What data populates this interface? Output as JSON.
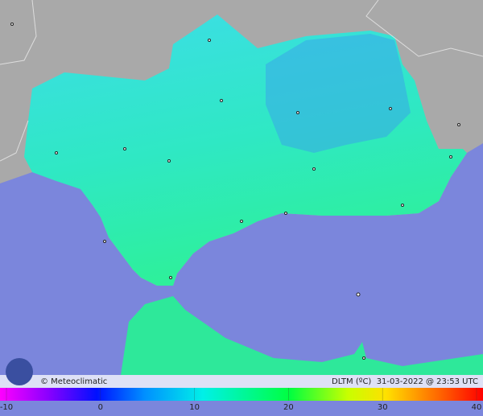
{
  "credit": "© Meteoclimatic",
  "caption": "DLTM (ºC)  31-03-2022 @ 23:53 UTC",
  "color_scale": {
    "min": -10,
    "max": 40,
    "ticks": [
      -10,
      0,
      10,
      20,
      30,
      40
    ]
  }
}
